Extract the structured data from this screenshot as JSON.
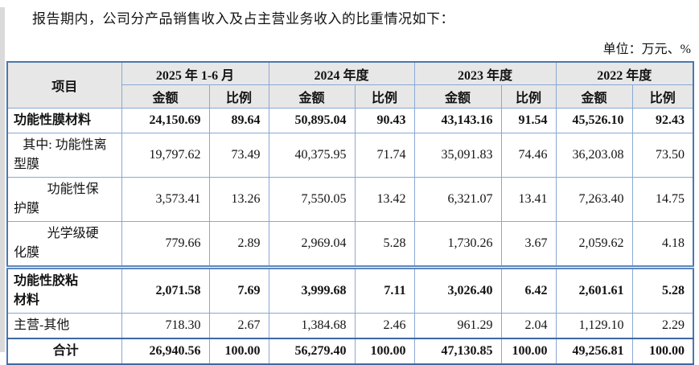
{
  "page": {
    "intro": "报告期内，公司分产品销售收入及占主营业务收入的比重情况如下：",
    "unit_note": "单位：万元、%"
  },
  "table": {
    "item_header": "项目",
    "periods": [
      "2025 年 1-6 月",
      "2024 年度",
      "2023 年度",
      "2022 年度"
    ],
    "sub_headers": {
      "amount": "金额",
      "ratio": "比例"
    },
    "rows": [
      {
        "label": "功能性膜材料",
        "role": "category",
        "thick_top": false,
        "values": [
          "24,150.69",
          "89.64",
          "50,895.04",
          "90.43",
          "43,143.16",
          "91.54",
          "45,526.10",
          "92.43"
        ]
      },
      {
        "label": "其中: 功能性离\n型膜",
        "role": "sub-first",
        "thick_top": false,
        "values": [
          "19,797.62",
          "73.49",
          "40,375.95",
          "71.74",
          "35,091.83",
          "74.46",
          "36,203.08",
          "73.50"
        ]
      },
      {
        "label": "功能性保\n护膜",
        "role": "sub",
        "thick_top": false,
        "values": [
          "3,573.41",
          "13.26",
          "7,550.05",
          "13.42",
          "6,321.07",
          "13.41",
          "7,263.40",
          "14.75"
        ]
      },
      {
        "label": "光学级硬\n化膜",
        "role": "sub",
        "thick_top": false,
        "values": [
          "779.66",
          "2.89",
          "2,969.04",
          "5.28",
          "1,730.26",
          "3.67",
          "2,059.62",
          "4.18"
        ]
      },
      {
        "label": "功能性胶粘\n材料",
        "role": "category",
        "thick_top": true,
        "values": [
          "2,071.58",
          "7.69",
          "3,999.68",
          "7.11",
          "3,026.40",
          "6.42",
          "2,601.61",
          "5.28"
        ]
      },
      {
        "label": "主营-其他",
        "role": "plain",
        "thick_top": false,
        "values": [
          "718.30",
          "2.67",
          "1,384.68",
          "2.46",
          "961.29",
          "2.04",
          "1,129.10",
          "2.29"
        ]
      },
      {
        "label": "合计",
        "role": "total",
        "thick_top": false,
        "values": [
          "26,940.56",
          "100.00",
          "56,279.40",
          "100.00",
          "47,130.85",
          "100.00",
          "49,256.81",
          "100.00"
        ]
      }
    ]
  },
  "colors": {
    "grid_line": "#89a8d4",
    "outer_border": "#4c77ad",
    "thick_rule": "#5d87bd",
    "total_rule": "#3e68a0",
    "header_bg": "#e7e7e7"
  }
}
